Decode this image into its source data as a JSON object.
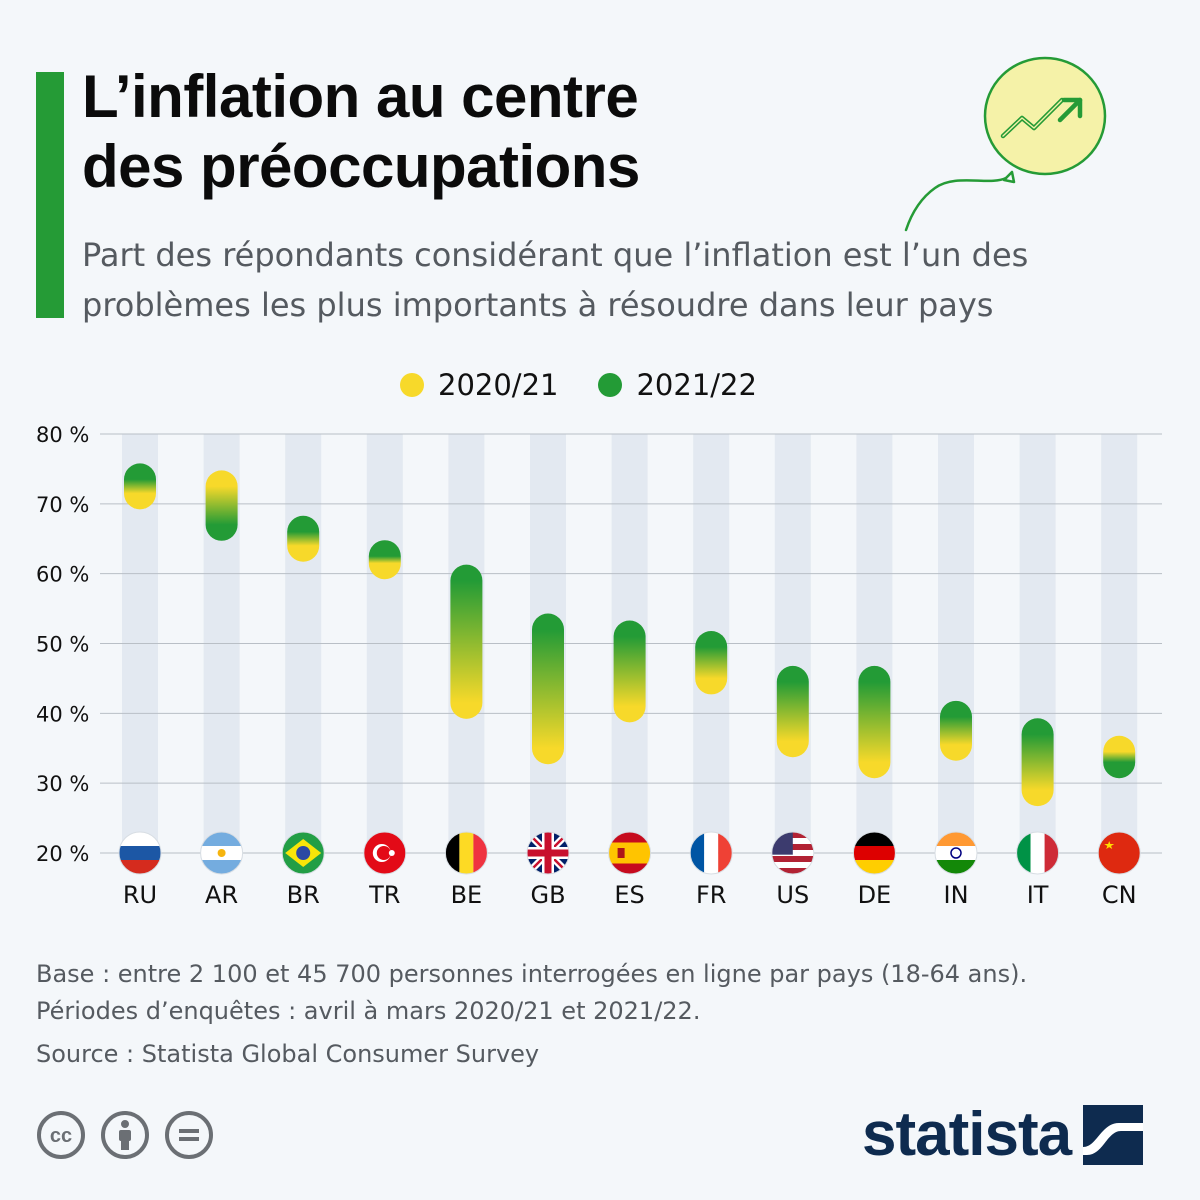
{
  "title_line1": "L’inflation au centre",
  "title_line2": "des préoccupations",
  "subtitle_line1": "Part des répondants considérant que l’inflation est l’un des",
  "subtitle_line2": "problèmes les plus importants à résoudre dans leur pays",
  "colors": {
    "accent": "#259b36",
    "series_2020": "#f7d92a",
    "series_2021": "#239b36",
    "column_band": "#e3e9f1",
    "brand": "#0e2b4f"
  },
  "icons": {
    "balloon": "balloon-trend-icon",
    "cc": "creative-commons-icon",
    "by": "attribution-person-icon",
    "nd": "no-derivatives-icon",
    "brand": "statista-logo-mark-icon"
  },
  "chart_data": {
    "type": "dumbbell",
    "title": "L’inflation au centre des préoccupations",
    "ylabel": "",
    "xlabel": "",
    "ylim": [
      20,
      80
    ],
    "yticks": [
      "20 %",
      "30 %",
      "40 %",
      "50 %",
      "60 %",
      "70 %",
      "80 %"
    ],
    "yticks_values": [
      20,
      30,
      40,
      50,
      60,
      70,
      80
    ],
    "grid": true,
    "legend_position": "top-center",
    "categories": [
      "RU",
      "AR",
      "BR",
      "TR",
      "BE",
      "GB",
      "ES",
      "FR",
      "US",
      "DE",
      "IN",
      "IT",
      "CN"
    ],
    "flags": [
      "russia-flag-icon",
      "argentina-flag-icon",
      "brazil-flag-icon",
      "turkey-flag-icon",
      "belgium-flag-icon",
      "uk-flag-icon",
      "spain-flag-icon",
      "france-flag-icon",
      "usa-flag-icon",
      "germany-flag-icon",
      "india-flag-icon",
      "italy-flag-icon",
      "china-flag-icon"
    ],
    "series": [
      {
        "name": "2020/21",
        "values": [
          71.5,
          72.5,
          64,
          61.5,
          41.5,
          35,
          41,
          45,
          36,
          33,
          35.5,
          29,
          34.5
        ]
      },
      {
        "name": "2021/22",
        "values": [
          73.5,
          67,
          66,
          62.5,
          59,
          52,
          51,
          49.5,
          44.5,
          44.5,
          39.5,
          37,
          33
        ]
      }
    ]
  },
  "footer": {
    "base": "Base : entre 2 100 et 45 700 personnes interrogées en ligne par pays (18-64 ans).",
    "periods": "Périodes d’enquêtes : avril à mars 2020/21 et 2021/22.",
    "source": "Source : Statista Global Consumer Survey"
  },
  "brand_name": "statista"
}
